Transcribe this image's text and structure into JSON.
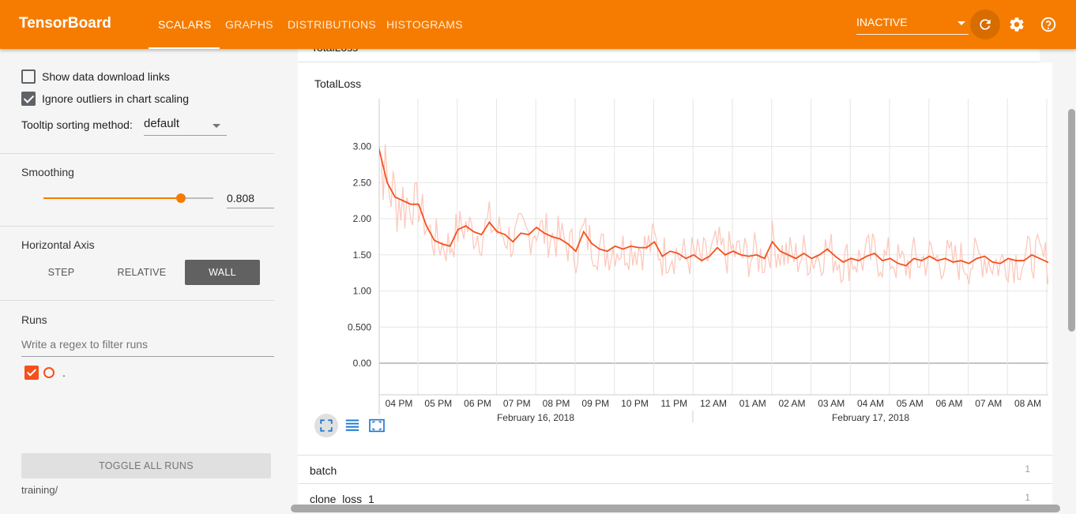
{
  "app": {
    "title": "TensorBoard",
    "tabs": [
      {
        "label": "SCALARS",
        "active": true
      },
      {
        "label": "GRAPHS",
        "active": false
      },
      {
        "label": "DISTRIBUTIONS",
        "active": false
      },
      {
        "label": "HISTOGRAMS",
        "active": false
      }
    ],
    "run_selector": "INACTIVE",
    "icons": {
      "reload": "reload-icon",
      "settings": "gear-icon",
      "help": "help-icon"
    },
    "accent_color": "#f57c00"
  },
  "sidebar": {
    "show_download_links": {
      "label": "Show data download links",
      "checked": false
    },
    "ignore_outliers": {
      "label": "Ignore outliers in chart scaling",
      "checked": true
    },
    "tooltip_sorting": {
      "label": "Tooltip sorting method:",
      "value": "default"
    },
    "smoothing": {
      "label": "Smoothing",
      "value": "0.808",
      "level": 0.808
    },
    "horizontal_axis": {
      "label": "Horizontal Axis",
      "options": [
        "STEP",
        "RELATIVE",
        "WALL"
      ],
      "selected": "WALL"
    },
    "runs": {
      "label": "Runs",
      "filter_placeholder": "Write a regex to filter runs",
      "items": [
        {
          "name": ".",
          "checked": true,
          "color": "#f4511e"
        }
      ],
      "toggle_all_label": "TOGGLE ALL RUNS",
      "logdir": "training/"
    }
  },
  "main": {
    "collapsed_header": "TotalLoss",
    "chart_title": "TotalLoss",
    "categories": [
      {
        "name": "batch",
        "count": "1"
      },
      {
        "name": "clone_loss_1",
        "count": "1"
      }
    ],
    "tools": [
      "fit-to-domain-icon",
      "log-scale-icon",
      "select-zoom-icon"
    ]
  },
  "chart_data": {
    "type": "line",
    "title": "TotalLoss",
    "xlabel": "",
    "ylabel": "",
    "x_axis": "wall time",
    "x_ticks": [
      "04 PM",
      "05 PM",
      "06 PM",
      "07 PM",
      "08 PM",
      "09 PM",
      "10 PM",
      "11 PM",
      "12 AM",
      "01 AM",
      "02 AM",
      "03 AM",
      "04 AM",
      "05 AM",
      "06 AM",
      "07 AM",
      "08 AM"
    ],
    "x_date_labels": [
      "February 16, 2018",
      "February 17, 2018"
    ],
    "y_ticks": [
      "0.00",
      "0.500",
      "1.00",
      "1.50",
      "2.00",
      "2.50",
      "3.00"
    ],
    "ylim": [
      -0.1,
      3.45
    ],
    "grid": true,
    "series_color": "#f4511e",
    "raw_color": "#fcc9bd",
    "smoothed_points": [
      [
        15.3,
        3.45
      ],
      [
        15.5,
        2.95
      ],
      [
        15.7,
        2.5
      ],
      [
        15.9,
        2.3
      ],
      [
        16.1,
        2.25
      ],
      [
        16.3,
        2.2
      ],
      [
        16.5,
        2.2
      ],
      [
        16.7,
        1.9
      ],
      [
        16.9,
        1.7
      ],
      [
        17.1,
        1.65
      ],
      [
        17.3,
        1.62
      ],
      [
        17.5,
        1.85
      ],
      [
        17.7,
        1.9
      ],
      [
        17.9,
        1.82
      ],
      [
        18.1,
        1.78
      ],
      [
        18.3,
        1.95
      ],
      [
        18.5,
        1.82
      ],
      [
        18.7,
        1.78
      ],
      [
        18.9,
        1.68
      ],
      [
        19.1,
        1.8
      ],
      [
        19.3,
        1.78
      ],
      [
        19.5,
        1.88
      ],
      [
        19.7,
        1.8
      ],
      [
        19.9,
        1.75
      ],
      [
        20.1,
        1.72
      ],
      [
        20.3,
        1.65
      ],
      [
        20.5,
        1.55
      ],
      [
        20.7,
        1.82
      ],
      [
        20.9,
        1.66
      ],
      [
        21.1,
        1.58
      ],
      [
        21.3,
        1.55
      ],
      [
        21.5,
        1.62
      ],
      [
        21.7,
        1.58
      ],
      [
        21.9,
        1.62
      ],
      [
        22.1,
        1.6
      ],
      [
        22.3,
        1.6
      ],
      [
        22.5,
        1.68
      ],
      [
        22.7,
        1.48
      ],
      [
        22.9,
        1.55
      ],
      [
        23.1,
        1.52
      ],
      [
        23.3,
        1.45
      ],
      [
        23.5,
        1.5
      ],
      [
        23.7,
        1.42
      ],
      [
        23.9,
        1.48
      ],
      [
        24.1,
        1.6
      ],
      [
        24.3,
        1.5
      ],
      [
        24.5,
        1.55
      ],
      [
        24.7,
        1.5
      ],
      [
        24.9,
        1.48
      ],
      [
        25.1,
        1.5
      ],
      [
        25.3,
        1.45
      ],
      [
        25.5,
        1.68
      ],
      [
        25.7,
        1.55
      ],
      [
        25.9,
        1.5
      ],
      [
        26.1,
        1.45
      ],
      [
        26.3,
        1.52
      ],
      [
        26.5,
        1.45
      ],
      [
        26.7,
        1.5
      ],
      [
        26.9,
        1.58
      ],
      [
        27.1,
        1.48
      ],
      [
        27.3,
        1.4
      ],
      [
        27.5,
        1.45
      ],
      [
        27.7,
        1.42
      ],
      [
        27.9,
        1.48
      ],
      [
        28.1,
        1.52
      ],
      [
        28.3,
        1.42
      ],
      [
        28.5,
        1.45
      ],
      [
        28.7,
        1.38
      ],
      [
        28.9,
        1.35
      ],
      [
        29.1,
        1.45
      ],
      [
        29.3,
        1.42
      ],
      [
        29.5,
        1.48
      ],
      [
        29.7,
        1.42
      ],
      [
        29.9,
        1.45
      ],
      [
        30.1,
        1.4
      ],
      [
        30.3,
        1.42
      ],
      [
        30.5,
        1.38
      ],
      [
        30.7,
        1.45
      ],
      [
        30.9,
        1.48
      ],
      [
        31.1,
        1.4
      ],
      [
        31.3,
        1.38
      ],
      [
        31.5,
        1.45
      ],
      [
        31.7,
        1.42
      ],
      [
        31.9,
        1.42
      ],
      [
        32.1,
        1.5
      ],
      [
        32.3,
        1.45
      ],
      [
        32.5,
        1.4
      ],
      [
        32.7,
        1.38
      ],
      [
        32.9,
        1.45
      ],
      [
        33.1,
        1.48
      ],
      [
        33.3,
        1.42
      ],
      [
        33.5,
        1.35
      ],
      [
        33.7,
        1.45
      ]
    ],
    "last_value": [
      33.7,
      1.43
    ]
  }
}
